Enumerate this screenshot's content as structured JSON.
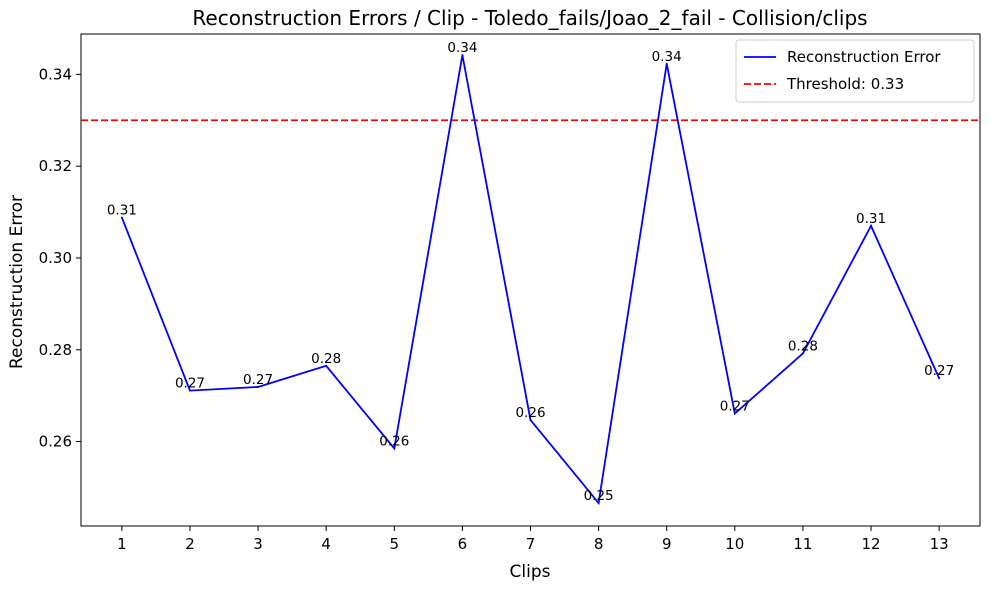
{
  "chart_data": {
    "type": "line",
    "title": "Reconstruction Errors / Clip - Toledo_fails/Joao_2_fail - Collision/clips",
    "xlabel": "Clips",
    "ylabel": "Reconstruction Error",
    "x": [
      1,
      2,
      3,
      4,
      5,
      6,
      7,
      8,
      9,
      10,
      11,
      12,
      13
    ],
    "x_tick_labels": [
      "1",
      "2",
      "3",
      "4",
      "5",
      "6",
      "7",
      "8",
      "9",
      "10",
      "11",
      "12",
      "13"
    ],
    "xlim": [
      0.4,
      13.6
    ],
    "ylim": [
      0.2416,
      0.3488
    ],
    "y_ticks": [
      0.26,
      0.28,
      0.3,
      0.32,
      0.34
    ],
    "y_tick_labels": [
      "0.26",
      "0.28",
      "0.30",
      "0.32",
      "0.34"
    ],
    "grid": false,
    "series": [
      {
        "name": "Reconstruction Error",
        "color": "#0000ff",
        "style": "solid",
        "values": [
          0.3088,
          0.2711,
          0.2719,
          0.2765,
          0.2585,
          0.3442,
          0.2647,
          0.2466,
          0.3423,
          0.2661,
          0.2792,
          0.307,
          0.2738
        ],
        "data_labels": [
          "0.31",
          "0.27",
          "0.27",
          "0.28",
          "0.26",
          "0.34",
          "0.26",
          "0.25",
          "0.34",
          "0.27",
          "0.28",
          "0.31",
          "0.27"
        ]
      }
    ],
    "threshold": {
      "name": "Threshold: 0.33",
      "value": 0.33,
      "color": "#ff0000",
      "style": "dashed"
    },
    "legend": {
      "position": "top-right",
      "entries": [
        "Reconstruction Error",
        "Threshold: 0.33"
      ]
    }
  }
}
